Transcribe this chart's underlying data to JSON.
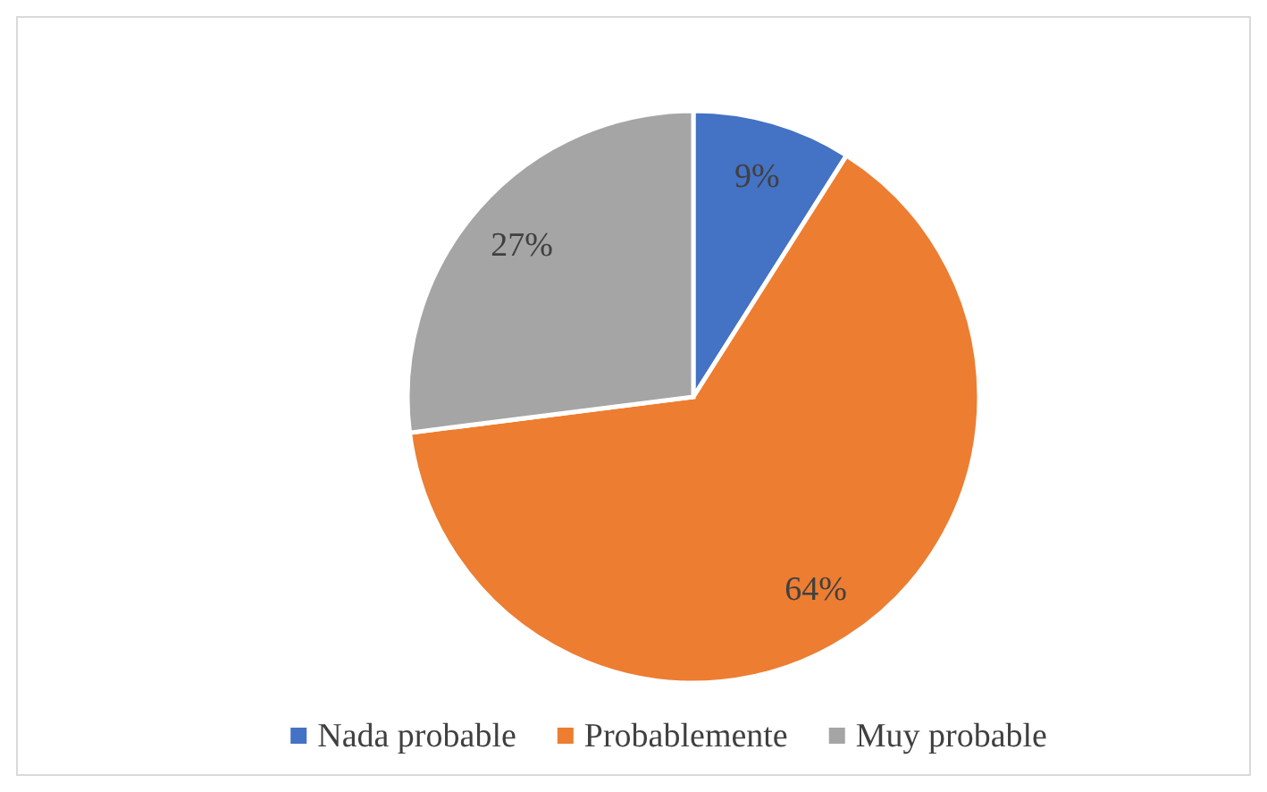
{
  "chart_data": {
    "type": "pie",
    "categories": [
      "Nada probable",
      "Probablemente",
      "Muy probable"
    ],
    "values": [
      9,
      64,
      27
    ],
    "colors": [
      "#4472c4",
      "#ed7d31",
      "#a5a5a5"
    ],
    "data_labels": true,
    "value_labels": [
      "9%",
      "64%",
      "27%"
    ],
    "legend": "bottom"
  }
}
